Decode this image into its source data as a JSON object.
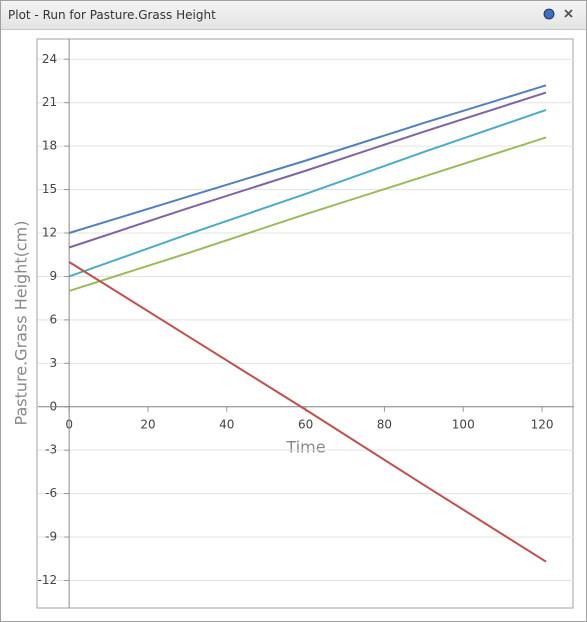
{
  "window_title": "Plot - Run for Pasture.Grass Height",
  "chart_data": {
    "type": "line",
    "x_label": "Time",
    "y_label": "Pasture.Grass Height(cm)",
    "x": [
      0,
      30,
      60,
      90,
      121
    ],
    "series": [
      {
        "color": "#4f81bd",
        "values": [
          12,
          14.5,
          17.0,
          19.6,
          22.2
        ]
      },
      {
        "color": "#8064a2",
        "values": [
          11,
          13.7,
          16.3,
          19.0,
          21.7
        ]
      },
      {
        "color": "#4bacc6",
        "values": [
          9,
          11.9,
          14.7,
          17.6,
          20.5
        ]
      },
      {
        "color": "#9bbb59",
        "values": [
          8,
          10.6,
          13.3,
          15.9,
          18.6
        ]
      },
      {
        "color": "#c0504d",
        "values": [
          10,
          4.9,
          -0.2,
          -5.4,
          -10.7
        ]
      }
    ],
    "xlim": [
      -7.9,
      128.1
    ],
    "ylim": [
      -13.9,
      25.4
    ],
    "xticks": [
      0,
      20,
      40,
      60,
      80,
      100,
      120
    ],
    "yticks": [
      -12,
      -9,
      -6,
      -3,
      0,
      3,
      6,
      9,
      12,
      15,
      18,
      21,
      24
    ],
    "grid": true
  }
}
